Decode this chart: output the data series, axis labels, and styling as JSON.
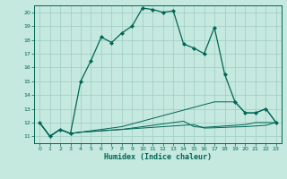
{
  "xlabel": "Humidex (Indice chaleur)",
  "bg_color": "#c5e8df",
  "line_color": "#006655",
  "grid_color": "#9dccc3",
  "xlim": [
    -0.5,
    23.5
  ],
  "ylim": [
    10.5,
    20.5
  ],
  "xticks": [
    0,
    1,
    2,
    3,
    4,
    5,
    6,
    7,
    8,
    9,
    10,
    11,
    12,
    13,
    14,
    15,
    16,
    17,
    18,
    19,
    20,
    21,
    22,
    23
  ],
  "yticks": [
    11,
    12,
    13,
    14,
    15,
    16,
    17,
    18,
    19,
    20
  ],
  "main_y": [
    12.0,
    11.0,
    11.5,
    11.2,
    15.0,
    16.5,
    18.2,
    17.8,
    18.5,
    19.0,
    20.3,
    20.2,
    20.0,
    20.1,
    17.7,
    17.4,
    17.0,
    18.9,
    15.5,
    13.5,
    12.7,
    12.7,
    13.0,
    12.0
  ],
  "flat_lines": [
    [
      12.0,
      11.0,
      11.5,
      11.2,
      11.3,
      11.35,
      11.4,
      11.45,
      11.5,
      11.55,
      11.6,
      11.65,
      11.7,
      11.75,
      11.8,
      11.85,
      11.6,
      11.62,
      11.65,
      11.68,
      11.7,
      11.75,
      11.8,
      12.0
    ],
    [
      12.0,
      11.0,
      11.5,
      11.2,
      11.3,
      11.35,
      11.4,
      11.45,
      11.5,
      11.6,
      11.7,
      11.8,
      11.9,
      12.0,
      12.1,
      11.7,
      11.65,
      11.7,
      11.75,
      11.8,
      11.85,
      12.0,
      12.0,
      12.0
    ],
    [
      12.0,
      11.0,
      11.5,
      11.2,
      11.3,
      11.4,
      11.5,
      11.6,
      11.7,
      11.9,
      12.1,
      12.3,
      12.5,
      12.7,
      12.9,
      13.1,
      13.3,
      13.5,
      13.5,
      13.5,
      12.7,
      12.7,
      13.0,
      12.0
    ]
  ]
}
